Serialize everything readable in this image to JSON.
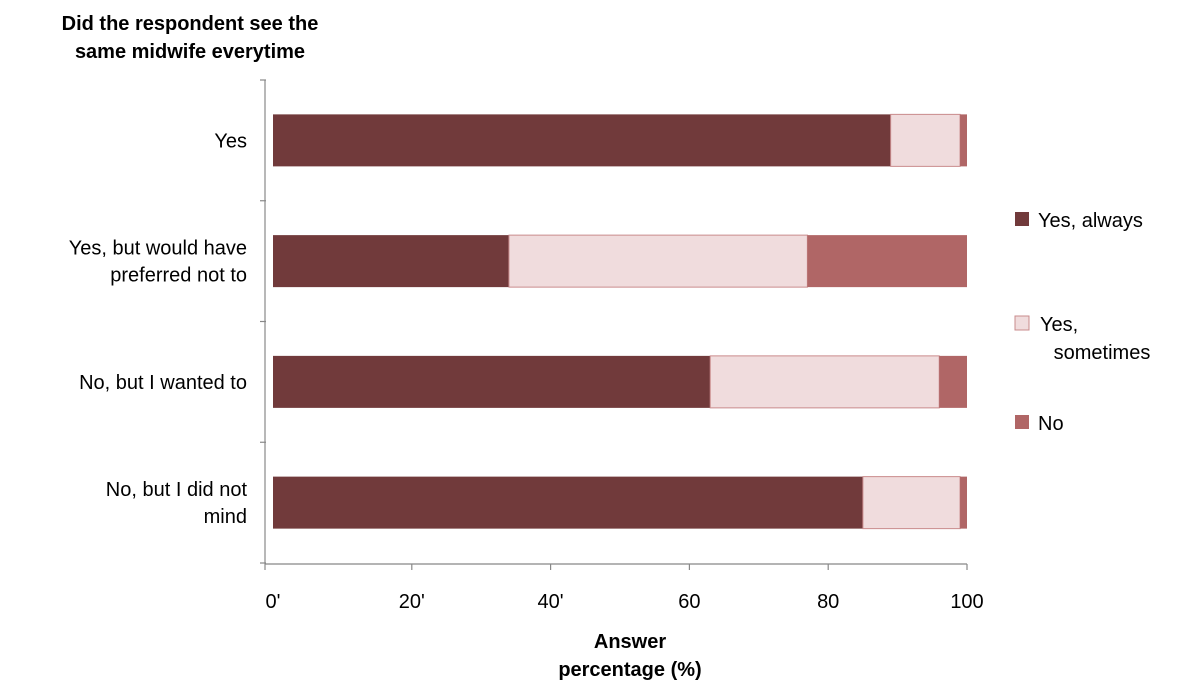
{
  "chart_data": {
    "type": "bar",
    "orientation": "horizontal",
    "stacked": true,
    "title": "",
    "ylabel": [
      "Did the respondent see the",
      "same midwife everytime"
    ],
    "xlabel": [
      "Answer",
      "percentage (%)"
    ],
    "xlim": [
      0,
      100
    ],
    "x_ticks": [
      0,
      20,
      40,
      60,
      80,
      100
    ],
    "x_tick_labels": [
      "0'",
      "20'",
      "40'",
      "60",
      "80",
      "100"
    ],
    "categories": [
      [
        "Yes"
      ],
      [
        "Yes, but would have",
        "preferred not to"
      ],
      [
        "No, but I wanted to"
      ],
      [
        "No, but I did not",
        "mind"
      ]
    ],
    "series": [
      {
        "name": [
          "Yes, always"
        ],
        "color": "#713a3b",
        "values": [
          89,
          34,
          63,
          85
        ]
      },
      {
        "name": [
          "Yes,",
          "sometimes"
        ],
        "color": "#f0dcdd",
        "values": [
          10,
          43,
          33,
          14
        ]
      },
      {
        "name": [
          "No"
        ],
        "color": "#b06666",
        "values": [
          1,
          23,
          4,
          1
        ]
      }
    ],
    "grid": false,
    "legend_position": "right"
  }
}
